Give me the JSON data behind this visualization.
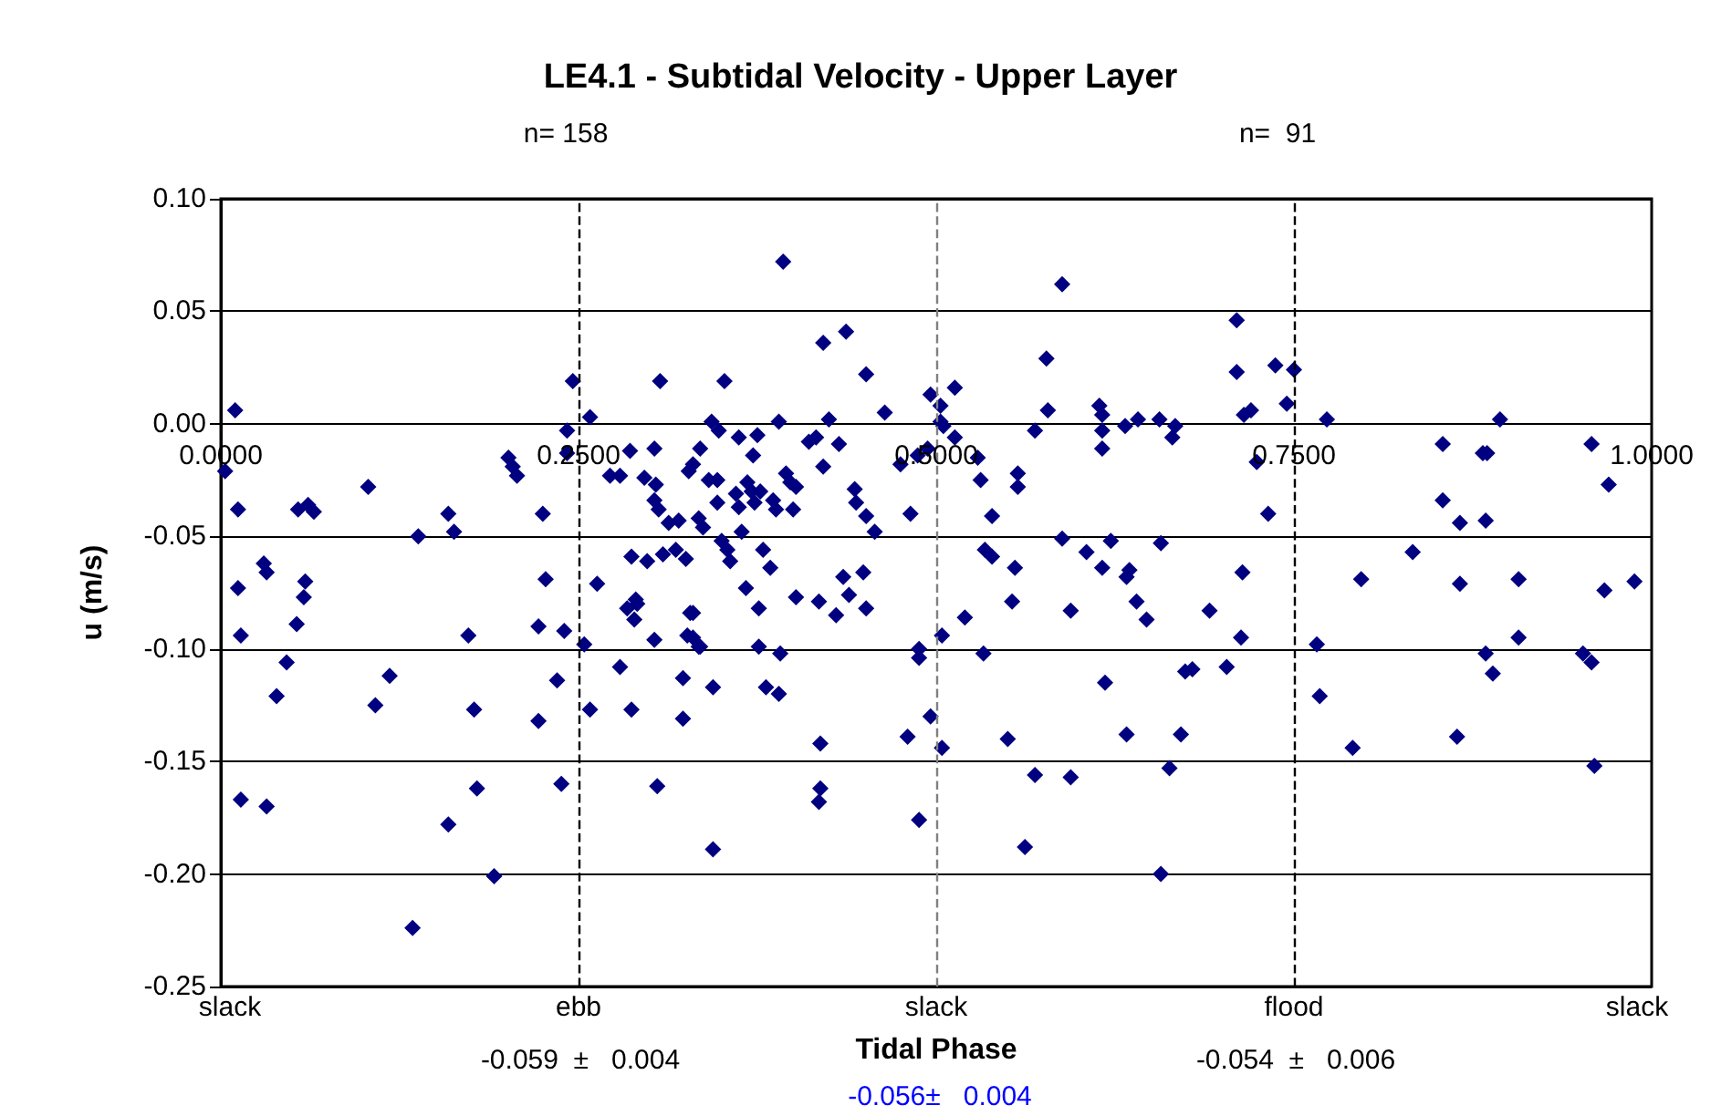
{
  "chart_data": {
    "type": "scatter",
    "title": "LE4.1 - Subtidal Velocity - Upper Layer",
    "xlabel": "Tidal Phase",
    "ylabel": "u (m/s)",
    "annotations": [
      "n= 158",
      "n=  91",
      "-0.059  ±   0.004",
      "-0.054  ±   0.006",
      "-0.056±   0.004",
      "slack",
      "ebb",
      "slack",
      "flood",
      "slack"
    ],
    "xlim": [
      0,
      1
    ],
    "xticks": [
      {
        "value": 0,
        "label": "0.0000"
      },
      {
        "value": 0.25,
        "label": "0.2500"
      },
      {
        "value": 0.5,
        "label": "0.5000"
      },
      {
        "value": 0.75,
        "label": "0.7500"
      },
      {
        "value": 1,
        "label": "1.0000"
      }
    ],
    "ylim": [
      -0.25,
      0.1
    ],
    "yticks": [
      {
        "value": -0.25,
        "label": "-0.25"
      },
      {
        "value": -0.2,
        "label": "-0.20"
      },
      {
        "value": -0.15,
        "label": "-0.15"
      },
      {
        "value": -0.1,
        "label": "-0.10"
      },
      {
        "value": -0.05,
        "label": "-0.05"
      },
      {
        "value": 0,
        "label": "0.00"
      },
      {
        "value": 0.05,
        "label": "0.05"
      },
      {
        "value": 0.1,
        "label": "0.10"
      }
    ],
    "grid": "y",
    "marker": "diamond",
    "color": "#000080",
    "ref_lines": [
      {
        "axis": "x",
        "value": 0.25,
        "color": "#000000",
        "line_style": "dashed"
      },
      {
        "axis": "x",
        "value": 0.5,
        "color": "#808080",
        "line_style": "dashed"
      },
      {
        "axis": "x",
        "value": 0.75,
        "color": "#000000",
        "line_style": "dashed"
      }
    ],
    "x": [
      0.01,
      0.003,
      0.012,
      0.054,
      0.061,
      0.065,
      0.103,
      0.138,
      0.159,
      0.163,
      0.201,
      0.204,
      0.207,
      0.225,
      0.246,
      0.242,
      0.242,
      0.258,
      0.307,
      0.286,
      0.303,
      0.272,
      0.279,
      0.296,
      0.304,
      0.303,
      0.306,
      0.313,
      0.32,
      0.327,
      0.33,
      0.335,
      0.334,
      0.012,
      0.03,
      0.032,
      0.059,
      0.058,
      0.227,
      0.263,
      0.287,
      0.298,
      0.309,
      0.318,
      0.325,
      0.29,
      0.014,
      0.053,
      0.046,
      0.039,
      0.118,
      0.108,
      0.173,
      0.177,
      0.222,
      0.24,
      0.254,
      0.235,
      0.222,
      0.258,
      0.279,
      0.287,
      0.284,
      0.291,
      0.289,
      0.303,
      0.328,
      0.326,
      0.334,
      0.323,
      0.323,
      0.014,
      0.032,
      0.179,
      0.159,
      0.238,
      0.305,
      0.191,
      0.134,
      0.393,
      0.421,
      0.437,
      0.451,
      0.352,
      0.464,
      0.496,
      0.513,
      0.503,
      0.503,
      0.505,
      0.513,
      0.494,
      0.487,
      0.475,
      0.343,
      0.348,
      0.362,
      0.375,
      0.372,
      0.39,
      0.411,
      0.416,
      0.432,
      0.425,
      0.421,
      0.341,
      0.347,
      0.395,
      0.398,
      0.402,
      0.368,
      0.36,
      0.371,
      0.377,
      0.386,
      0.388,
      0.373,
      0.362,
      0.347,
      0.4,
      0.337,
      0.364,
      0.35,
      0.354,
      0.356,
      0.379,
      0.384,
      0.443,
      0.444,
      0.451,
      0.457,
      0.482,
      0.435,
      0.449,
      0.367,
      0.402,
      0.418,
      0.439,
      0.529,
      0.531,
      0.539,
      0.557,
      0.557,
      0.569,
      0.577,
      0.578,
      0.588,
      0.614,
      0.616,
      0.616,
      0.616,
      0.632,
      0.641,
      0.656,
      0.667,
      0.665,
      0.588,
      0.605,
      0.622,
      0.657,
      0.534,
      0.539,
      0.555,
      0.616,
      0.635,
      0.633,
      0.553,
      0.64,
      0.33,
      0.33,
      0.335,
      0.376,
      0.43,
      0.451,
      0.376,
      0.391,
      0.344,
      0.381,
      0.39,
      0.419,
      0.419,
      0.418,
      0.344,
      0.488,
      0.488,
      0.504,
      0.52,
      0.533,
      0.594,
      0.647,
      0.618,
      0.496,
      0.48,
      0.504,
      0.55,
      0.633,
      0.671,
      0.569,
      0.594,
      0.663,
      0.488,
      0.562,
      0.657,
      0.674,
      0.71,
      0.71,
      0.737,
      0.75,
      0.745,
      0.715,
      0.72,
      0.773,
      0.724,
      0.732,
      0.854,
      0.882,
      0.885,
      0.894,
      0.958,
      0.97,
      0.854,
      0.866,
      0.884,
      0.833,
      0.714,
      0.797,
      0.866,
      0.907,
      0.967,
      0.988,
      0.691,
      0.713,
      0.679,
      0.703,
      0.766,
      0.768,
      0.791,
      0.864,
      0.884,
      0.889,
      0.907,
      0.952,
      0.958,
      0.96
    ],
    "values": [
      0.006,
      -0.021,
      -0.038,
      -0.038,
      -0.036,
      -0.039,
      -0.028,
      -0.05,
      -0.04,
      -0.048,
      -0.015,
      -0.019,
      -0.023,
      -0.04,
      0.019,
      -0.003,
      -0.013,
      0.003,
      0.019,
      -0.012,
      -0.011,
      -0.023,
      -0.023,
      -0.024,
      -0.027,
      -0.034,
      -0.038,
      -0.044,
      -0.043,
      -0.021,
      -0.018,
      -0.011,
      -0.042,
      -0.073,
      -0.062,
      -0.066,
      -0.07,
      -0.077,
      -0.069,
      -0.071,
      -0.059,
      -0.061,
      -0.058,
      -0.056,
      -0.06,
      -0.078,
      -0.094,
      -0.089,
      -0.106,
      -0.121,
      -0.112,
      -0.125,
      -0.094,
      -0.127,
      -0.09,
      -0.092,
      -0.098,
      -0.114,
      -0.132,
      -0.127,
      -0.108,
      -0.127,
      -0.082,
      -0.08,
      -0.087,
      -0.096,
      -0.084,
      -0.094,
      -0.099,
      -0.113,
      -0.131,
      -0.167,
      -0.17,
      -0.162,
      -0.178,
      -0.16,
      -0.161,
      -0.201,
      -0.224,
      0.072,
      0.036,
      0.041,
      0.022,
      0.019,
      0.005,
      0.013,
      0.016,
      0.008,
      0.001,
      -0.001,
      -0.006,
      -0.011,
      -0.014,
      -0.018,
      0.001,
      -0.003,
      -0.006,
      -0.005,
      -0.014,
      0.001,
      -0.008,
      -0.006,
      -0.009,
      0.002,
      -0.019,
      -0.025,
      -0.025,
      -0.022,
      -0.026,
      -0.028,
      -0.026,
      -0.031,
      -0.03,
      -0.03,
      -0.034,
      -0.038,
      -0.035,
      -0.037,
      -0.035,
      -0.038,
      -0.046,
      -0.048,
      -0.052,
      -0.056,
      -0.061,
      -0.056,
      -0.064,
      -0.029,
      -0.035,
      -0.041,
      -0.048,
      -0.04,
      -0.068,
      -0.066,
      -0.073,
      -0.077,
      -0.079,
      -0.076,
      -0.015,
      -0.025,
      -0.041,
      -0.022,
      -0.028,
      -0.003,
      0.029,
      0.006,
      0.062,
      0.008,
      0.004,
      -0.003,
      -0.011,
      -0.001,
      0.002,
      0.002,
      -0.001,
      -0.006,
      -0.051,
      -0.057,
      -0.052,
      -0.053,
      -0.056,
      -0.059,
      -0.064,
      -0.064,
      -0.065,
      -0.068,
      -0.079,
      -0.079,
      -0.084,
      -0.095,
      -0.099,
      -0.082,
      -0.085,
      -0.082,
      -0.099,
      -0.102,
      -0.117,
      -0.117,
      -0.12,
      -0.142,
      -0.162,
      -0.168,
      -0.189,
      -0.1,
      -0.104,
      -0.094,
      -0.086,
      -0.102,
      -0.083,
      -0.087,
      -0.115,
      -0.13,
      -0.139,
      -0.144,
      -0.14,
      -0.138,
      -0.138,
      -0.156,
      -0.157,
      -0.153,
      -0.176,
      -0.188,
      -0.2,
      -0.11,
      0.046,
      0.023,
      0.026,
      0.024,
      0.009,
      0.004,
      0.006,
      0.002,
      -0.017,
      -0.04,
      -0.009,
      -0.013,
      -0.013,
      0.002,
      -0.009,
      -0.027,
      -0.034,
      -0.044,
      -0.043,
      -0.057,
      -0.066,
      -0.069,
      -0.071,
      -0.069,
      -0.074,
      -0.07,
      -0.083,
      -0.095,
      -0.109,
      -0.108,
      -0.098,
      -0.121,
      -0.144,
      -0.139,
      -0.102,
      -0.111,
      -0.095,
      -0.102,
      -0.106,
      -0.152
    ]
  }
}
